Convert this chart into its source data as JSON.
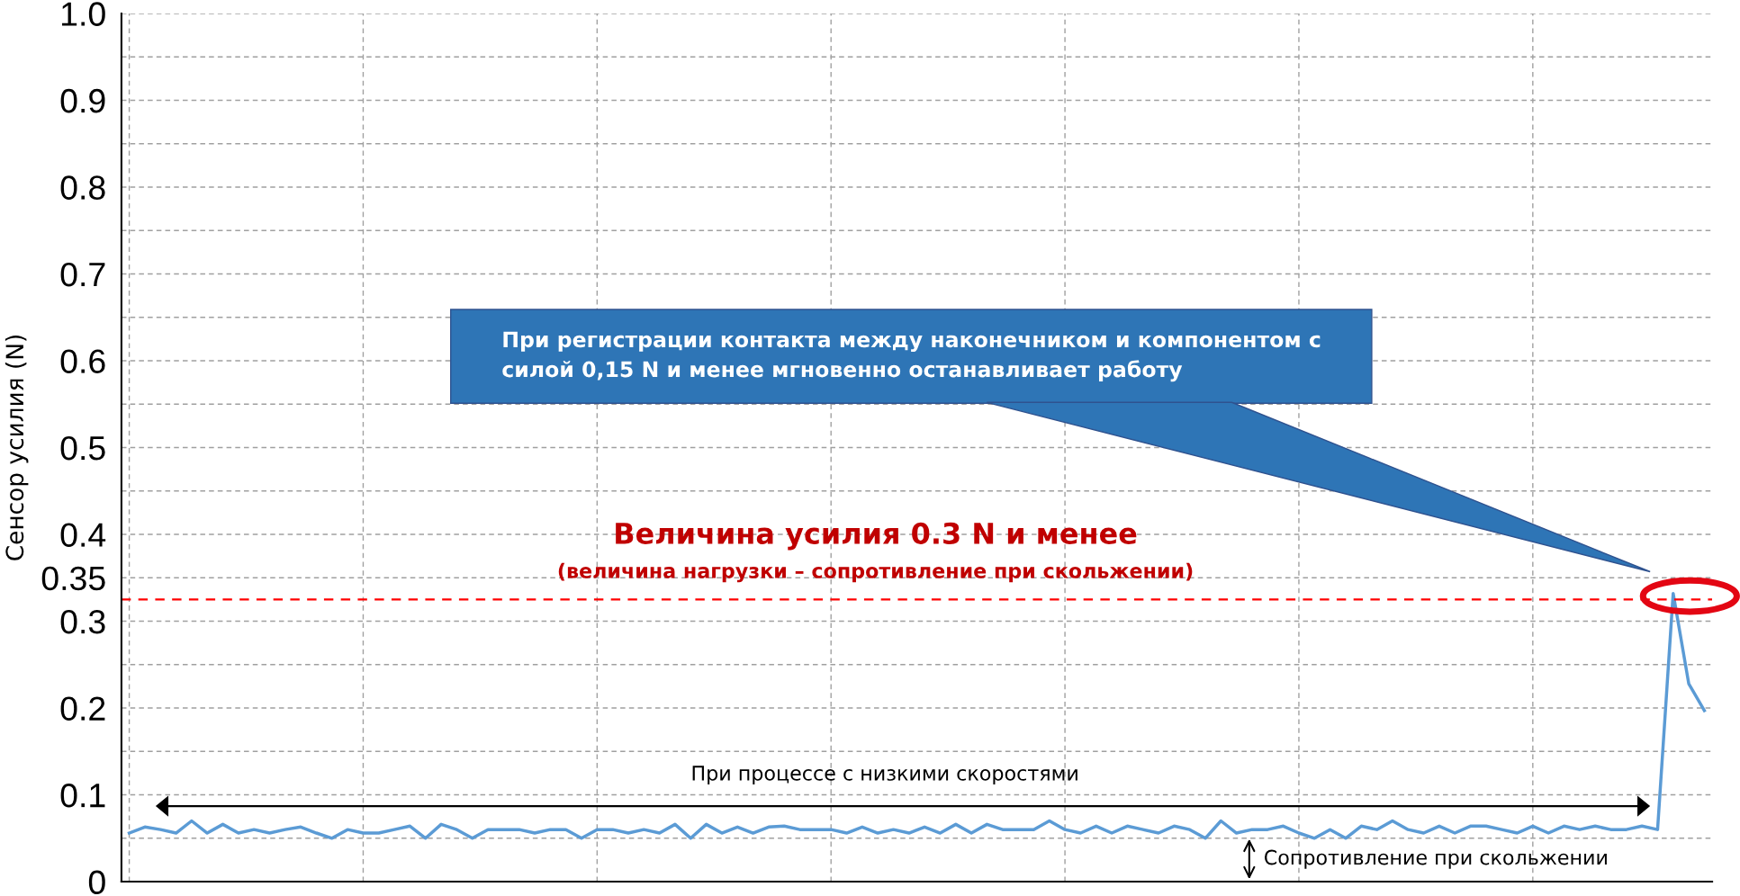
{
  "chart_data": {
    "type": "line",
    "ylabel": "Сенсор усилия (N)",
    "categories": [
      null,
      null,
      null,
      null,
      null,
      null,
      null,
      null,
      null,
      null,
      null,
      null,
      null,
      null,
      null,
      null,
      null,
      null,
      null,
      null,
      null,
      null,
      null,
      null,
      null,
      null,
      null,
      null,
      null,
      null,
      null,
      null,
      null,
      null,
      null,
      null,
      null,
      null,
      null,
      null,
      null,
      null,
      null,
      null,
      null,
      null,
      null,
      null,
      null,
      null,
      null,
      null,
      null,
      null,
      null,
      null,
      null,
      null,
      null,
      null,
      null,
      null,
      null,
      null,
      null,
      null,
      null,
      null,
      null,
      null,
      null,
      null,
      null,
      null,
      null,
      null,
      null,
      null,
      null,
      null,
      null,
      null,
      null,
      null,
      null,
      null,
      null,
      null,
      null,
      null,
      null,
      null,
      null,
      null,
      null,
      null,
      null,
      null,
      null,
      null,
      null,
      null
    ],
    "ylim": [
      0,
      1.0
    ],
    "yticks": [
      0,
      {
        "value": 0.05,
        "label": null
      },
      0.1,
      {
        "value": 0.15,
        "label": null
      },
      0.2,
      {
        "value": 0.25,
        "label": null
      },
      0.3,
      0.35,
      0.4,
      {
        "value": 0.45,
        "label": null
      },
      0.5,
      {
        "value": 0.55,
        "label": null
      },
      0.6,
      {
        "value": 0.65,
        "label": null
      },
      0.7,
      {
        "value": 0.75,
        "label": null
      },
      0.8,
      {
        "value": 0.85,
        "label": null
      },
      0.9,
      {
        "value": 0.95,
        "label": null
      },
      {
        "value": 1.0,
        "label": "1.0"
      }
    ],
    "tick_labels": "y",
    "grid": true,
    "marker": "none",
    "line_style": "solid",
    "series": [
      {
        "color": "#5b9bd5",
        "values": [
          0.056,
          0.063,
          0.06,
          0.056,
          0.07,
          0.056,
          0.066,
          0.056,
          0.06,
          0.056,
          0.06,
          0.063,
          0.056,
          0.05,
          0.06,
          0.056,
          0.056,
          0.06,
          0.064,
          0.05,
          0.066,
          0.06,
          0.05,
          0.06,
          0.06,
          0.06,
          0.056,
          0.06,
          0.06,
          0.05,
          0.06,
          0.06,
          0.056,
          0.06,
          0.056,
          0.066,
          0.05,
          0.066,
          0.056,
          0.063,
          0.056,
          0.063,
          0.064,
          0.06,
          0.06,
          0.06,
          0.056,
          0.063,
          0.056,
          0.06,
          0.056,
          0.063,
          0.056,
          0.066,
          0.056,
          0.066,
          0.06,
          0.06,
          0.06,
          0.07,
          0.06,
          0.056,
          0.064,
          0.056,
          0.064,
          0.06,
          0.056,
          0.064,
          0.06,
          0.05,
          0.07,
          0.056,
          0.06,
          0.06,
          0.064,
          0.056,
          0.05,
          0.06,
          0.05,
          0.064,
          0.06,
          0.07,
          0.06,
          0.056,
          0.064,
          0.056,
          0.064,
          0.064,
          0.06,
          0.056,
          0.064,
          0.056,
          0.064,
          0.06,
          0.064,
          0.06,
          0.06,
          0.064,
          0.06,
          0.332,
          0.228,
          0.197
        ]
      }
    ],
    "ref_lines": [
      {
        "axis": "y",
        "value": 0.325,
        "color": "#ff0000",
        "line_style": "dashed"
      }
    ],
    "annotations": [
      "При регистрации контакта между наконечником и компонентом с\nсилой 0,15 N и менее мгновенно останавливает работу",
      "Величина усилия 0.3 N и менее",
      "(величина нагрузки – сопротивление при скольжении)",
      "При процессе с низкими скоростями",
      "Сопротивление при скольжении"
    ]
  }
}
